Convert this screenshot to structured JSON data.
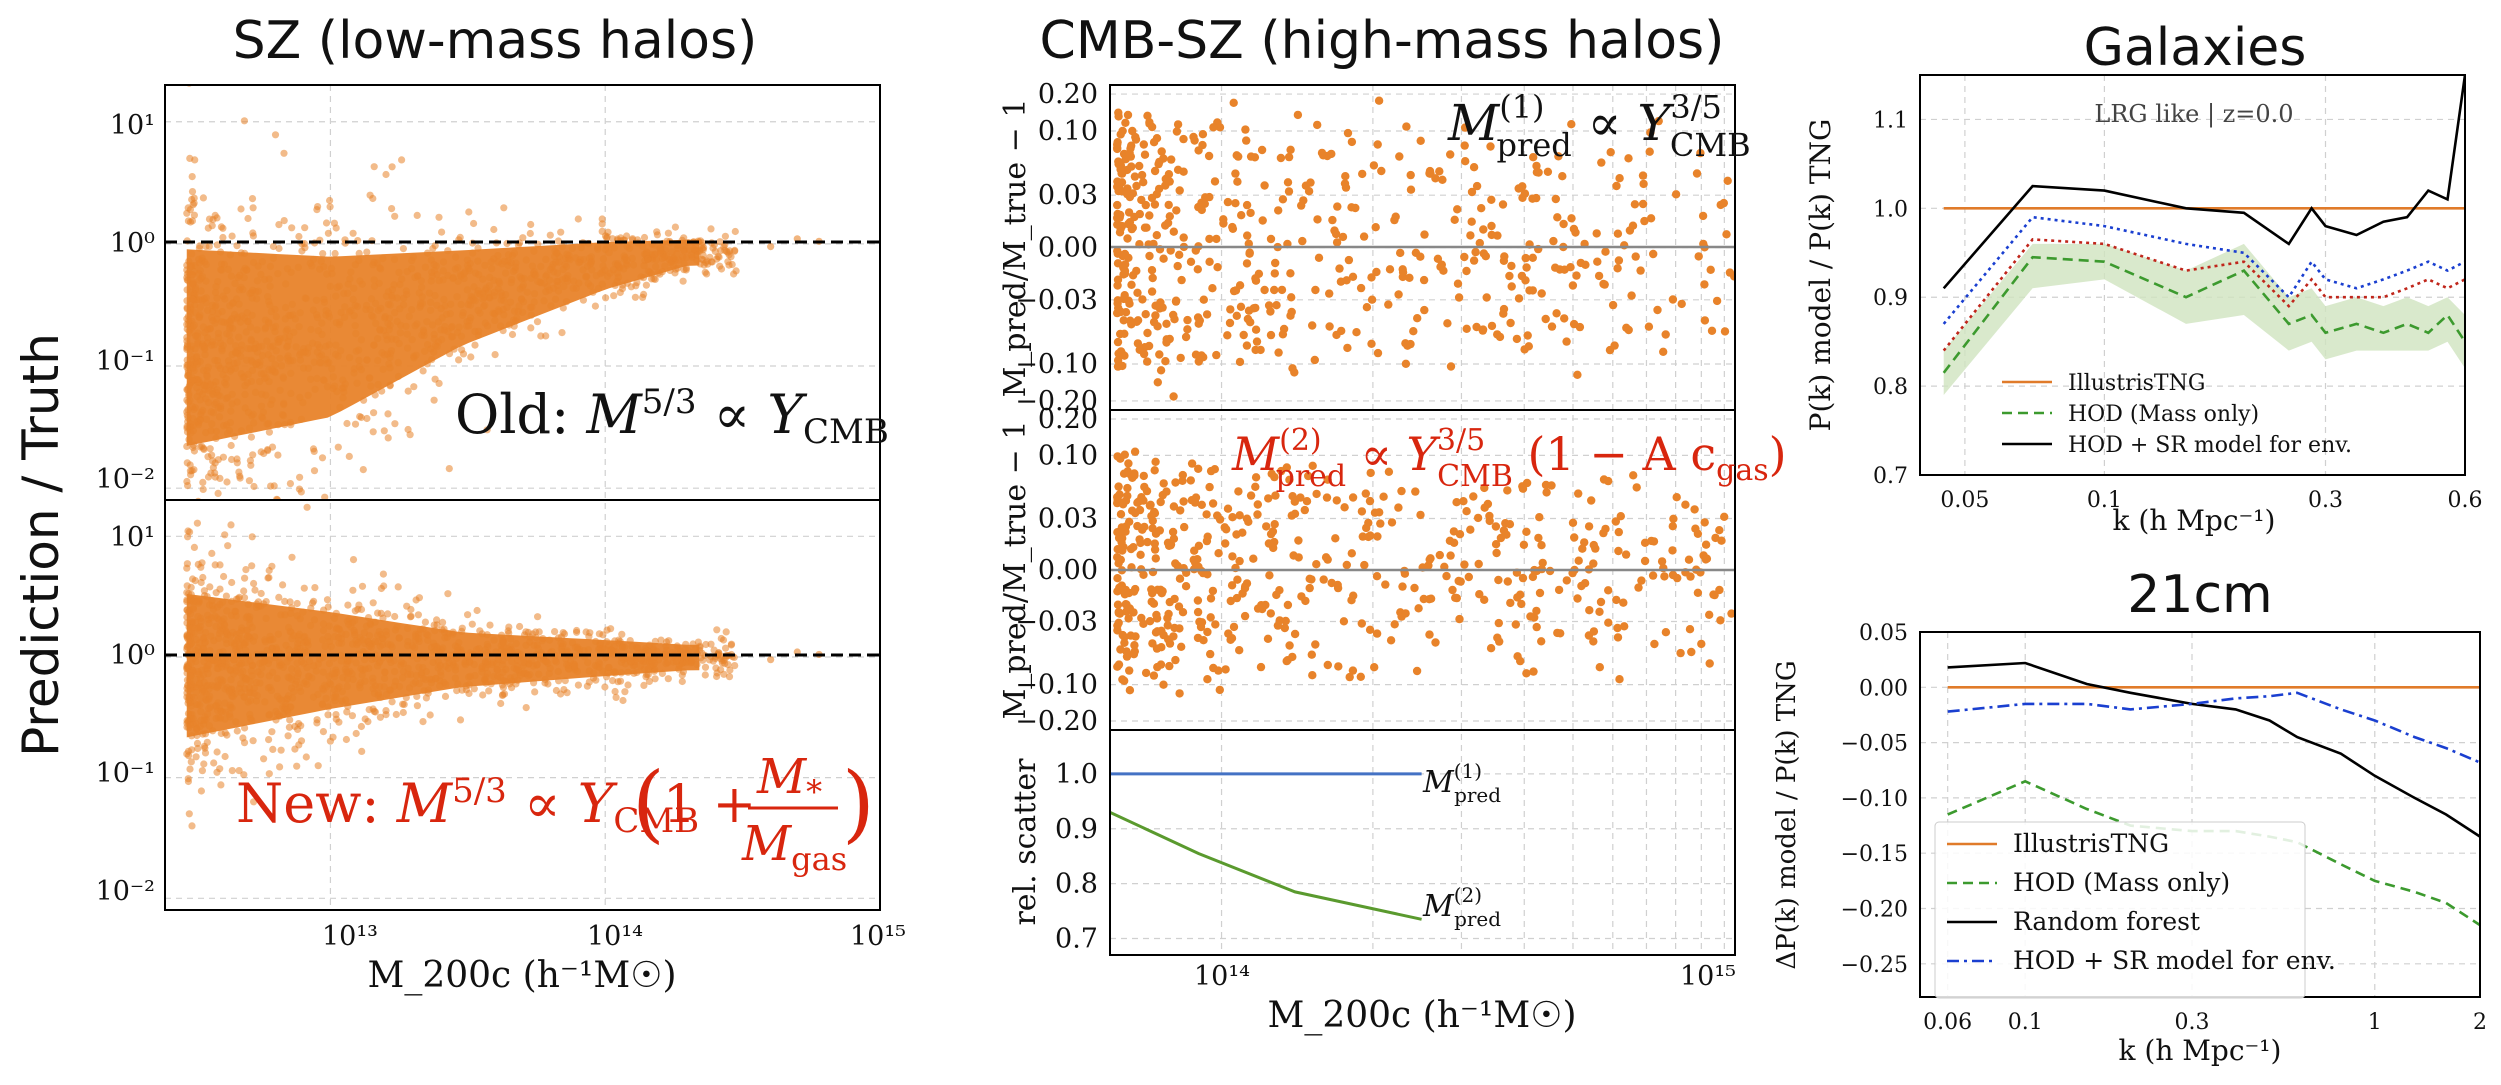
{
  "chart_data": [
    {
      "type": "scatter",
      "title": "SZ (low-mass halos)",
      "ylabel": "Prediction / Truth",
      "xlabel": "M_200c (h⁻¹M☉)",
      "x_scale": "log",
      "y_scale": "log",
      "xlim": [
        2500000000000.0,
        1000000000000000.0
      ],
      "x_ticks": [
        "10¹³",
        "10¹⁴",
        "10¹⁵"
      ],
      "panels": [
        {
          "label": "Old: M^5/3 ∝ Y_CMB",
          "label_parts": {
            "pre": "Old: ",
            "m": "M",
            "msup": "5/3",
            "mid": " ∝ ",
            "y": "Y",
            "ysub": "CMB"
          },
          "ylim": [
            0.008,
            20
          ],
          "y_ticks": [
            "10¹",
            "10⁰",
            "10⁻¹",
            "10⁻²"
          ],
          "reference_line": 1.0,
          "scatter_envelope": [
            {
              "x": 3000000000000.0,
              "lo": 0.01,
              "hi": 2.0
            },
            {
              "x": 10000000000000.0,
              "lo": 0.02,
              "hi": 1.5
            },
            {
              "x": 30000000000000.0,
              "lo": 0.1,
              "hi": 1.3
            },
            {
              "x": 100000000000000.0,
              "lo": 0.35,
              "hi": 1.25
            },
            {
              "x": 200000000000000.0,
              "lo": 0.6,
              "hi": 1.2
            }
          ],
          "color": "#e8832a"
        },
        {
          "label": "New: M^5/3 ∝ Y_CMB (1 + M*/M_gas)",
          "label_parts": {
            "pre": "New: ",
            "m": "M",
            "msup": "5/3",
            "mid": " ∝ ",
            "y": "Y",
            "ysub": "CMB",
            "num": "M",
            "numsub": "*",
            "den": "M",
            "densub": "gas",
            "one": "1 +"
          },
          "ylim": [
            0.008,
            20
          ],
          "y_ticks": [
            "10¹",
            "10⁰",
            "10⁻¹",
            "10⁻²"
          ],
          "reference_line": 1.0,
          "scatter_envelope": [
            {
              "x": 3000000000000.0,
              "lo": 0.12,
              "hi": 6.0
            },
            {
              "x": 10000000000000.0,
              "lo": 0.25,
              "hi": 3.5
            },
            {
              "x": 30000000000000.0,
              "lo": 0.45,
              "hi": 2.0
            },
            {
              "x": 100000000000000.0,
              "lo": 0.6,
              "hi": 1.6
            },
            {
              "x": 200000000000000.0,
              "lo": 0.7,
              "hi": 1.4
            }
          ],
          "color": "#e8832a"
        }
      ]
    },
    {
      "type": "scatter",
      "title": "CMB-SZ (high-mass halos)",
      "xlabel": "M_200c (h⁻¹M☉)",
      "x_scale": "log",
      "xlim": [
        60000000000000.0,
        1050000000000000.0
      ],
      "x_ticks": [
        "10¹⁴",
        "10¹⁵"
      ],
      "panels": [
        {
          "ylabel": "M_pred/M_true − 1",
          "label": "M_pred^(1) ∝ Y_CMB^3/5",
          "label_parts": {
            "m": "M",
            "msub": "pred",
            "msup": "(1)",
            "mid": " ∝ ",
            "y": "Y",
            "ysub": "CMB",
            "ysup": "3/5"
          },
          "y_scale": "symlog",
          "ylim": [
            -0.22,
            0.22
          ],
          "y_ticks": [
            "0.20",
            "0.10",
            "0.03",
            "0.00",
            "−0.03",
            "−0.10",
            "−0.20"
          ],
          "scatter_sigma": 0.06,
          "color": "#e8832a"
        },
        {
          "ylabel": "M_pred/M_true − 1",
          "label": "M_pred^(2) ∝ Y_CMB^3/5 (1 − A c_gas)",
          "label_parts": {
            "m": "M",
            "msub": "pred",
            "msup": "(2)",
            "mid": " ∝ ",
            "y": "Y",
            "ysub": "CMB",
            "ysup": "3/5",
            "tail": " (1 − A c",
            "tailsub": "gas",
            "close": ")"
          },
          "y_scale": "symlog",
          "ylim": [
            -0.22,
            0.22
          ],
          "y_ticks": [
            "0.20",
            "0.10",
            "0.03",
            "0.00",
            "−0.03",
            "−0.10",
            "−0.20"
          ],
          "scatter_sigma": 0.045,
          "color": "#e8832a"
        },
        {
          "type": "line",
          "ylabel": "rel. scatter",
          "ylim": [
            0.67,
            1.08
          ],
          "y_ticks": [
            "1.0",
            "0.9",
            "0.8",
            "0.7"
          ],
          "series": [
            {
              "name": "M_pred^(1)",
              "label_parts": {
                "m": "M",
                "msub": "pred",
                "msup": "(1)"
              },
              "color": "#4472c4",
              "x": [
                60000000000000.0,
                250000000000000.0
              ],
              "y": [
                1.0,
                1.0
              ]
            },
            {
              "name": "M_pred^(2)",
              "label_parts": {
                "m": "M",
                "msub": "pred",
                "msup": "(2)"
              },
              "color": "#5a9a2e",
              "x": [
                60000000000000.0,
                90000000000000.0,
                140000000000000.0,
                250000000000000.0
              ],
              "y": [
                0.93,
                0.855,
                0.785,
                0.735
              ]
            }
          ]
        }
      ]
    },
    {
      "type": "line",
      "title": "Galaxies",
      "annotation": "LRG like | z=0.0",
      "ylabel": "P(k) model / P(k) TNG",
      "xlabel": "k (h Mpc⁻¹)",
      "x_scale": "log",
      "xlim": [
        0.04,
        0.6
      ],
      "ylim": [
        0.7,
        1.15
      ],
      "x_ticks": [
        "0.05",
        "0.1",
        "0.3",
        "0.6"
      ],
      "y_ticks": [
        "1.1",
        "1.0",
        "0.9",
        "0.8",
        "0.7"
      ],
      "legend_position": "lower-left",
      "x": [
        0.045,
        0.07,
        0.1,
        0.15,
        0.2,
        0.25,
        0.28,
        0.3,
        0.35,
        0.4,
        0.45,
        0.5,
        0.55,
        0.6
      ],
      "series": [
        {
          "name": "IllustrisTNG",
          "color": "#e07b2a",
          "style": "solid",
          "y": [
            1.0,
            1.0,
            1.0,
            1.0,
            1.0,
            1.0,
            1.0,
            1.0,
            1.0,
            1.0,
            1.0,
            1.0,
            1.0,
            1.0
          ]
        },
        {
          "name": "HOD (Mass only)",
          "color": "#3c9a2e",
          "style": "dashed",
          "y": [
            0.815,
            0.945,
            0.94,
            0.9,
            0.93,
            0.87,
            0.88,
            0.86,
            0.87,
            0.86,
            0.87,
            0.86,
            0.88,
            0.85
          ]
        },
        {
          "name": "HOD + SR model for env.",
          "color": "#000000",
          "style": "solid",
          "label_color": "#d8260e",
          "y": [
            0.91,
            1.025,
            1.02,
            1.0,
            0.995,
            0.96,
            1.0,
            0.98,
            0.97,
            0.985,
            0.99,
            1.02,
            1.01,
            1.15
          ]
        },
        {
          "name": "",
          "color": "#1a3fd0",
          "style": "dotted",
          "y": [
            0.87,
            0.99,
            0.98,
            0.96,
            0.95,
            0.9,
            0.94,
            0.92,
            0.91,
            0.92,
            0.93,
            0.94,
            0.93,
            0.94
          ]
        },
        {
          "name": "",
          "color": "#c0261b",
          "style": "dotted",
          "y": [
            0.84,
            0.965,
            0.96,
            0.93,
            0.94,
            0.89,
            0.92,
            0.9,
            0.9,
            0.9,
            0.91,
            0.92,
            0.91,
            0.92
          ]
        }
      ],
      "band": {
        "color": "#cfe3bf",
        "lo": [
          0.79,
          0.91,
          0.92,
          0.87,
          0.88,
          0.84,
          0.85,
          0.83,
          0.84,
          0.84,
          0.84,
          0.84,
          0.85,
          0.82
        ],
        "hi": [
          0.84,
          0.96,
          0.96,
          0.93,
          0.96,
          0.9,
          0.91,
          0.89,
          0.9,
          0.89,
          0.9,
          0.89,
          0.9,
          0.88
        ]
      }
    },
    {
      "type": "line",
      "title": "21cm",
      "ylabel": "ΔP(k) model / P(k) TNG",
      "xlabel": "k (h Mpc⁻¹)",
      "x_scale": "log",
      "xlim": [
        0.05,
        2
      ],
      "ylim": [
        -0.28,
        0.05
      ],
      "x_ticks": [
        "0.06",
        "0.1",
        "0.3",
        "1",
        "2"
      ],
      "y_ticks": [
        "0.05",
        "0.00",
        "−0.05",
        "−0.10",
        "−0.15",
        "−0.20",
        "−0.25"
      ],
      "legend_position": "lower-left",
      "x": [
        0.06,
        0.1,
        0.15,
        0.2,
        0.3,
        0.4,
        0.5,
        0.6,
        0.8,
        1.0,
        1.3,
        1.6,
        2.0
      ],
      "series": [
        {
          "name": "IllustrisTNG",
          "color": "#e07b2a",
          "style": "solid",
          "y": [
            0,
            0,
            0,
            0,
            0,
            0,
            0,
            0,
            0,
            0,
            0,
            0,
            0
          ]
        },
        {
          "name": "HOD (Mass only)",
          "color": "#3c9a2e",
          "style": "dashed",
          "y": [
            -0.115,
            -0.085,
            -0.11,
            -0.125,
            -0.13,
            -0.13,
            -0.135,
            -0.14,
            -0.16,
            -0.175,
            -0.185,
            -0.195,
            -0.215
          ]
        },
        {
          "name": "Random forest",
          "color": "#000000",
          "style": "solid",
          "y": [
            0.018,
            0.022,
            0.003,
            -0.005,
            -0.015,
            -0.02,
            -0.03,
            -0.045,
            -0.06,
            -0.08,
            -0.1,
            -0.115,
            -0.135
          ]
        },
        {
          "name": "HOD + SR model for env.",
          "color": "#1a3fd0",
          "style": "dashdot",
          "label_color": "#d8260e",
          "y": [
            -0.022,
            -0.015,
            -0.015,
            -0.02,
            -0.015,
            -0.01,
            -0.008,
            -0.005,
            -0.02,
            -0.03,
            -0.045,
            -0.055,
            -0.068
          ]
        }
      ]
    }
  ]
}
